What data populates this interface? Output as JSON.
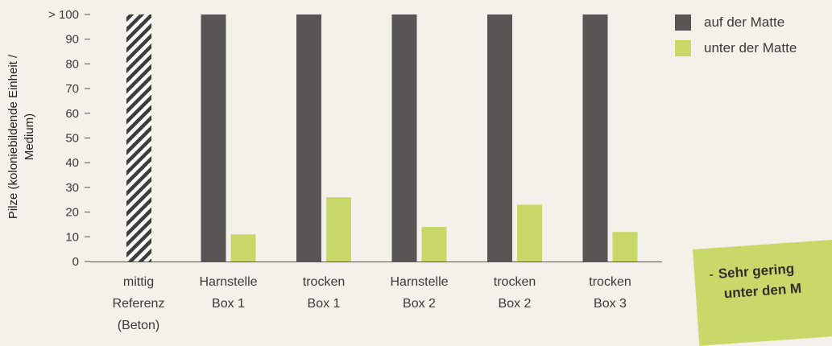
{
  "chart_data": {
    "type": "bar",
    "ylabel": "Pilze (koloniebildende Einheit / Medium)",
    "ylim": [
      0,
      100
    ],
    "yticks": [
      "0",
      "10",
      "20",
      "30",
      "40",
      "50",
      "60",
      "70",
      "80",
      "90",
      "> 100"
    ],
    "categories": [
      [
        "mittig",
        "Referenz",
        "(Beton)"
      ],
      [
        "Harnstelle",
        "Box 1"
      ],
      [
        "trocken",
        "Box 1"
      ],
      [
        "Harnstelle",
        "Box 2"
      ],
      [
        "trocken",
        "Box 2"
      ],
      [
        "trocken",
        "Box 3"
      ]
    ],
    "series": [
      {
        "name": "auf der Matte",
        "color": "#575654",
        "values": [
          100,
          100,
          100,
          100,
          100,
          100
        ],
        "reference_hatched": true
      },
      {
        "name": "unter der Matte",
        "color": "#c8d96a",
        "values": [
          null,
          11,
          26,
          14,
          23,
          12
        ]
      }
    ],
    "legend": "right",
    "grid": false
  },
  "note": {
    "line1": "Sehr gering",
    "line2": "unter den M"
  }
}
